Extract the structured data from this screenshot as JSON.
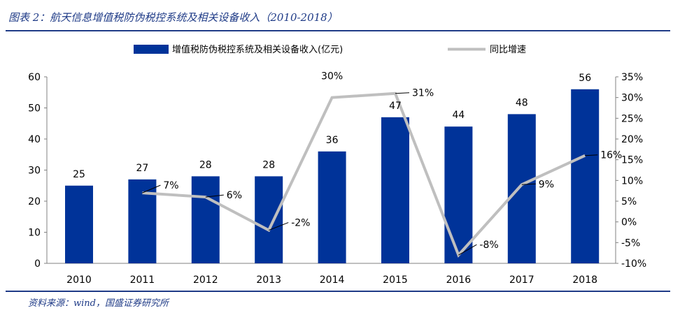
{
  "header": {
    "title": "图表 2：航天信息增值税防伪税控系统及相关设备收入（2010-2018）"
  },
  "footer": {
    "source": "资料来源：wind，国盛证券研究所"
  },
  "colors": {
    "bar": "#003399",
    "line": "#bfbfbf",
    "accent": "#1f3b87"
  },
  "chart_data": {
    "type": "bar",
    "categories": [
      "2010",
      "2011",
      "2012",
      "2013",
      "2014",
      "2015",
      "2016",
      "2017",
      "2018"
    ],
    "series": [
      {
        "name": "增值税防伪税控系统及相关设备收入(亿元)",
        "type": "bar",
        "axis": "left",
        "values": [
          25,
          27,
          28,
          28,
          36,
          47,
          44,
          48,
          56
        ],
        "labels": [
          "25",
          "27",
          "28",
          "28",
          "36",
          "47",
          "44",
          "48",
          "56"
        ]
      },
      {
        "name": "同比增速",
        "type": "line",
        "axis": "right",
        "values": [
          null,
          7,
          6,
          -2,
          30,
          31,
          -8,
          9,
          16
        ],
        "labels": [
          "",
          "7%",
          "6%",
          "-2%",
          "30%",
          "31%",
          "-8%",
          "9%",
          "16%"
        ]
      }
    ],
    "ylim": [
      0,
      60
    ],
    "yticks": [
      "0",
      "10",
      "20",
      "30",
      "40",
      "50",
      "60"
    ],
    "y2lim": [
      -10,
      35
    ],
    "y2ticks": [
      "-10%",
      "-5%",
      "0%",
      "5%",
      "10%",
      "15%",
      "20%",
      "25%",
      "30%",
      "35%"
    ],
    "legend_position": "top",
    "grid": false
  }
}
